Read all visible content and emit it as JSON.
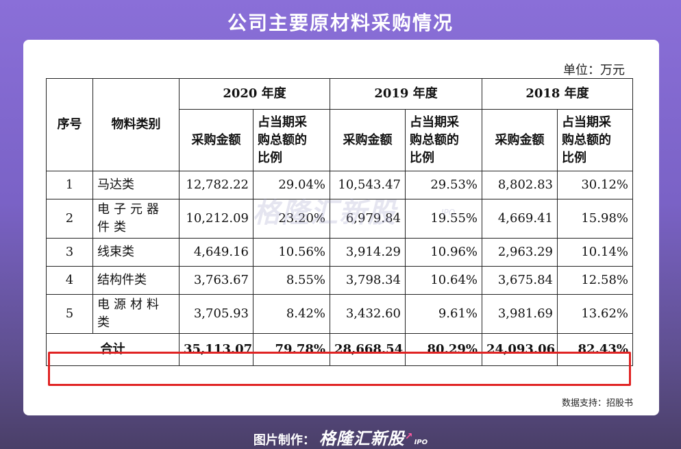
{
  "title": "公司主要原材料采购情况",
  "unit": "单位：万元",
  "table": {
    "col_seq": "序号",
    "col_category": "物料类别",
    "years": [
      "2020 年度",
      "2019 年度",
      "2018 年度"
    ],
    "sub_amount": "采购金额",
    "sub_ratio_lines": [
      "占当期采",
      "购总额的",
      "比例"
    ],
    "rows": [
      {
        "seq": "1",
        "category": "马达类",
        "v2020": "12,782.22",
        "r2020": "29.04%",
        "v2019": "10,543.47",
        "r2019": "29.53%",
        "v2018": "8,802.83",
        "r2018": "30.12%"
      },
      {
        "seq": "2",
        "category": "电子元器件类",
        "cat_lines": [
          "电子元器",
          "件类"
        ],
        "v2020": "10,212.09",
        "r2020": "23.20%",
        "v2019": "6,979.84",
        "r2019": "19.55%",
        "v2018": "4,669.41",
        "r2018": "15.98%"
      },
      {
        "seq": "3",
        "category": "线束类",
        "v2020": "4,649.16",
        "r2020": "10.56%",
        "v2019": "3,914.29",
        "r2019": "10.96%",
        "v2018": "2,963.29",
        "r2018": "10.14%"
      },
      {
        "seq": "4",
        "category": "结构件类",
        "v2020": "3,763.67",
        "r2020": "8.55%",
        "v2019": "3,798.34",
        "r2019": "10.64%",
        "v2018": "3,675.84",
        "r2018": "12.58%"
      },
      {
        "seq": "5",
        "category": "电源材料类",
        "cat_lines": [
          "电源材料",
          "类"
        ],
        "v2020": "3,705.93",
        "r2020": "8.42%",
        "v2019": "3,432.60",
        "r2019": "9.61%",
        "v2018": "3,981.69",
        "r2018": "13.62%"
      }
    ],
    "total": {
      "label": "合计",
      "v2020": "35,113.07",
      "r2020": "79.78%",
      "v2019": "28,668.54",
      "r2019": "80.29%",
      "v2018": "24,093.06",
      "r2018": "82.43%"
    }
  },
  "highlight_color": "#e02222",
  "watermark": "格隆汇新股",
  "watermark_sub": "IPO",
  "source": "数据支持：招股书",
  "footer": {
    "label": "图片制作：",
    "brand": "格隆汇新股",
    "ipo": "IPO"
  }
}
